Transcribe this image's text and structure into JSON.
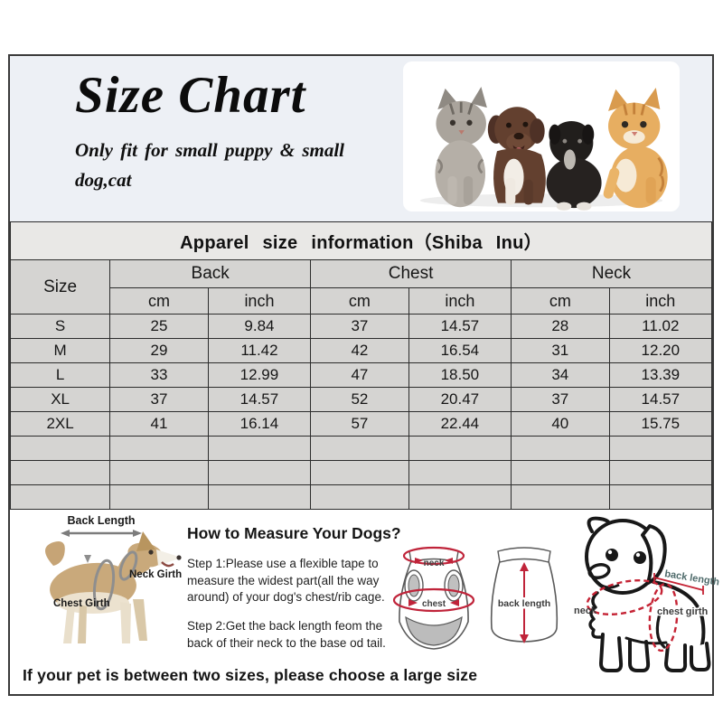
{
  "header": {
    "title": "Size Chart",
    "subtitle": "Only fit for small puppy & small dog,cat"
  },
  "table": {
    "title": "Apparel size information（Shiba Inu）",
    "size_header": "Size",
    "groups": [
      "Back",
      "Chest",
      "Neck"
    ],
    "units": [
      "cm",
      "inch",
      "cm",
      "inch",
      "cm",
      "inch"
    ],
    "rows": [
      {
        "size": "S",
        "values": [
          "25",
          "9.84",
          "37",
          "14.57",
          "28",
          "11.02"
        ]
      },
      {
        "size": "M",
        "values": [
          "29",
          "11.42",
          "42",
          "16.54",
          "31",
          "12.20"
        ]
      },
      {
        "size": "L",
        "values": [
          "33",
          "12.99",
          "47",
          "18.50",
          "34",
          "13.39"
        ]
      },
      {
        "size": "XL",
        "values": [
          "37",
          "14.57",
          "52",
          "20.47",
          "37",
          "14.57"
        ]
      },
      {
        "size": "2XL",
        "values": [
          "41",
          "16.14",
          "57",
          "22.44",
          "40",
          "15.75"
        ]
      }
    ],
    "empty_row_count": 3
  },
  "guide": {
    "heading": "How to Measure Your Dogs?",
    "step1": "Step 1:Please use a flexible tape to measure the widest part(all the way around) of your dog's chest/rib cage.",
    "step2": "Step 2:Get the back length feom the back of their neck to the base od tail.",
    "dog_labels": {
      "back_length": "Back Length",
      "neck_girth": "Neck Girth",
      "chest_girth": "Chest Girth"
    },
    "garment_labels": {
      "neck": "neck",
      "chest": "chest",
      "back_length": "back length"
    },
    "puppy_labels": {
      "neck": "neck",
      "back_length": "back length",
      "chest_girth": "chest girth"
    }
  },
  "note": "If your pet is between two sizes, please choose a large size",
  "icons": {
    "pets_photo": "pets-photo",
    "dog_diagram": "dog-measurement-diagram",
    "garment_diagram": "garment-measurement-diagram",
    "puppy_diagram": "puppy-measurement-diagram"
  },
  "colors": {
    "accent_red": "#c0243a",
    "cell_gray": "#d5d4d2",
    "title_row_gray": "#e9e8e6",
    "header_blue": "#edf0f5",
    "border_dark": "#2c2c2c"
  }
}
